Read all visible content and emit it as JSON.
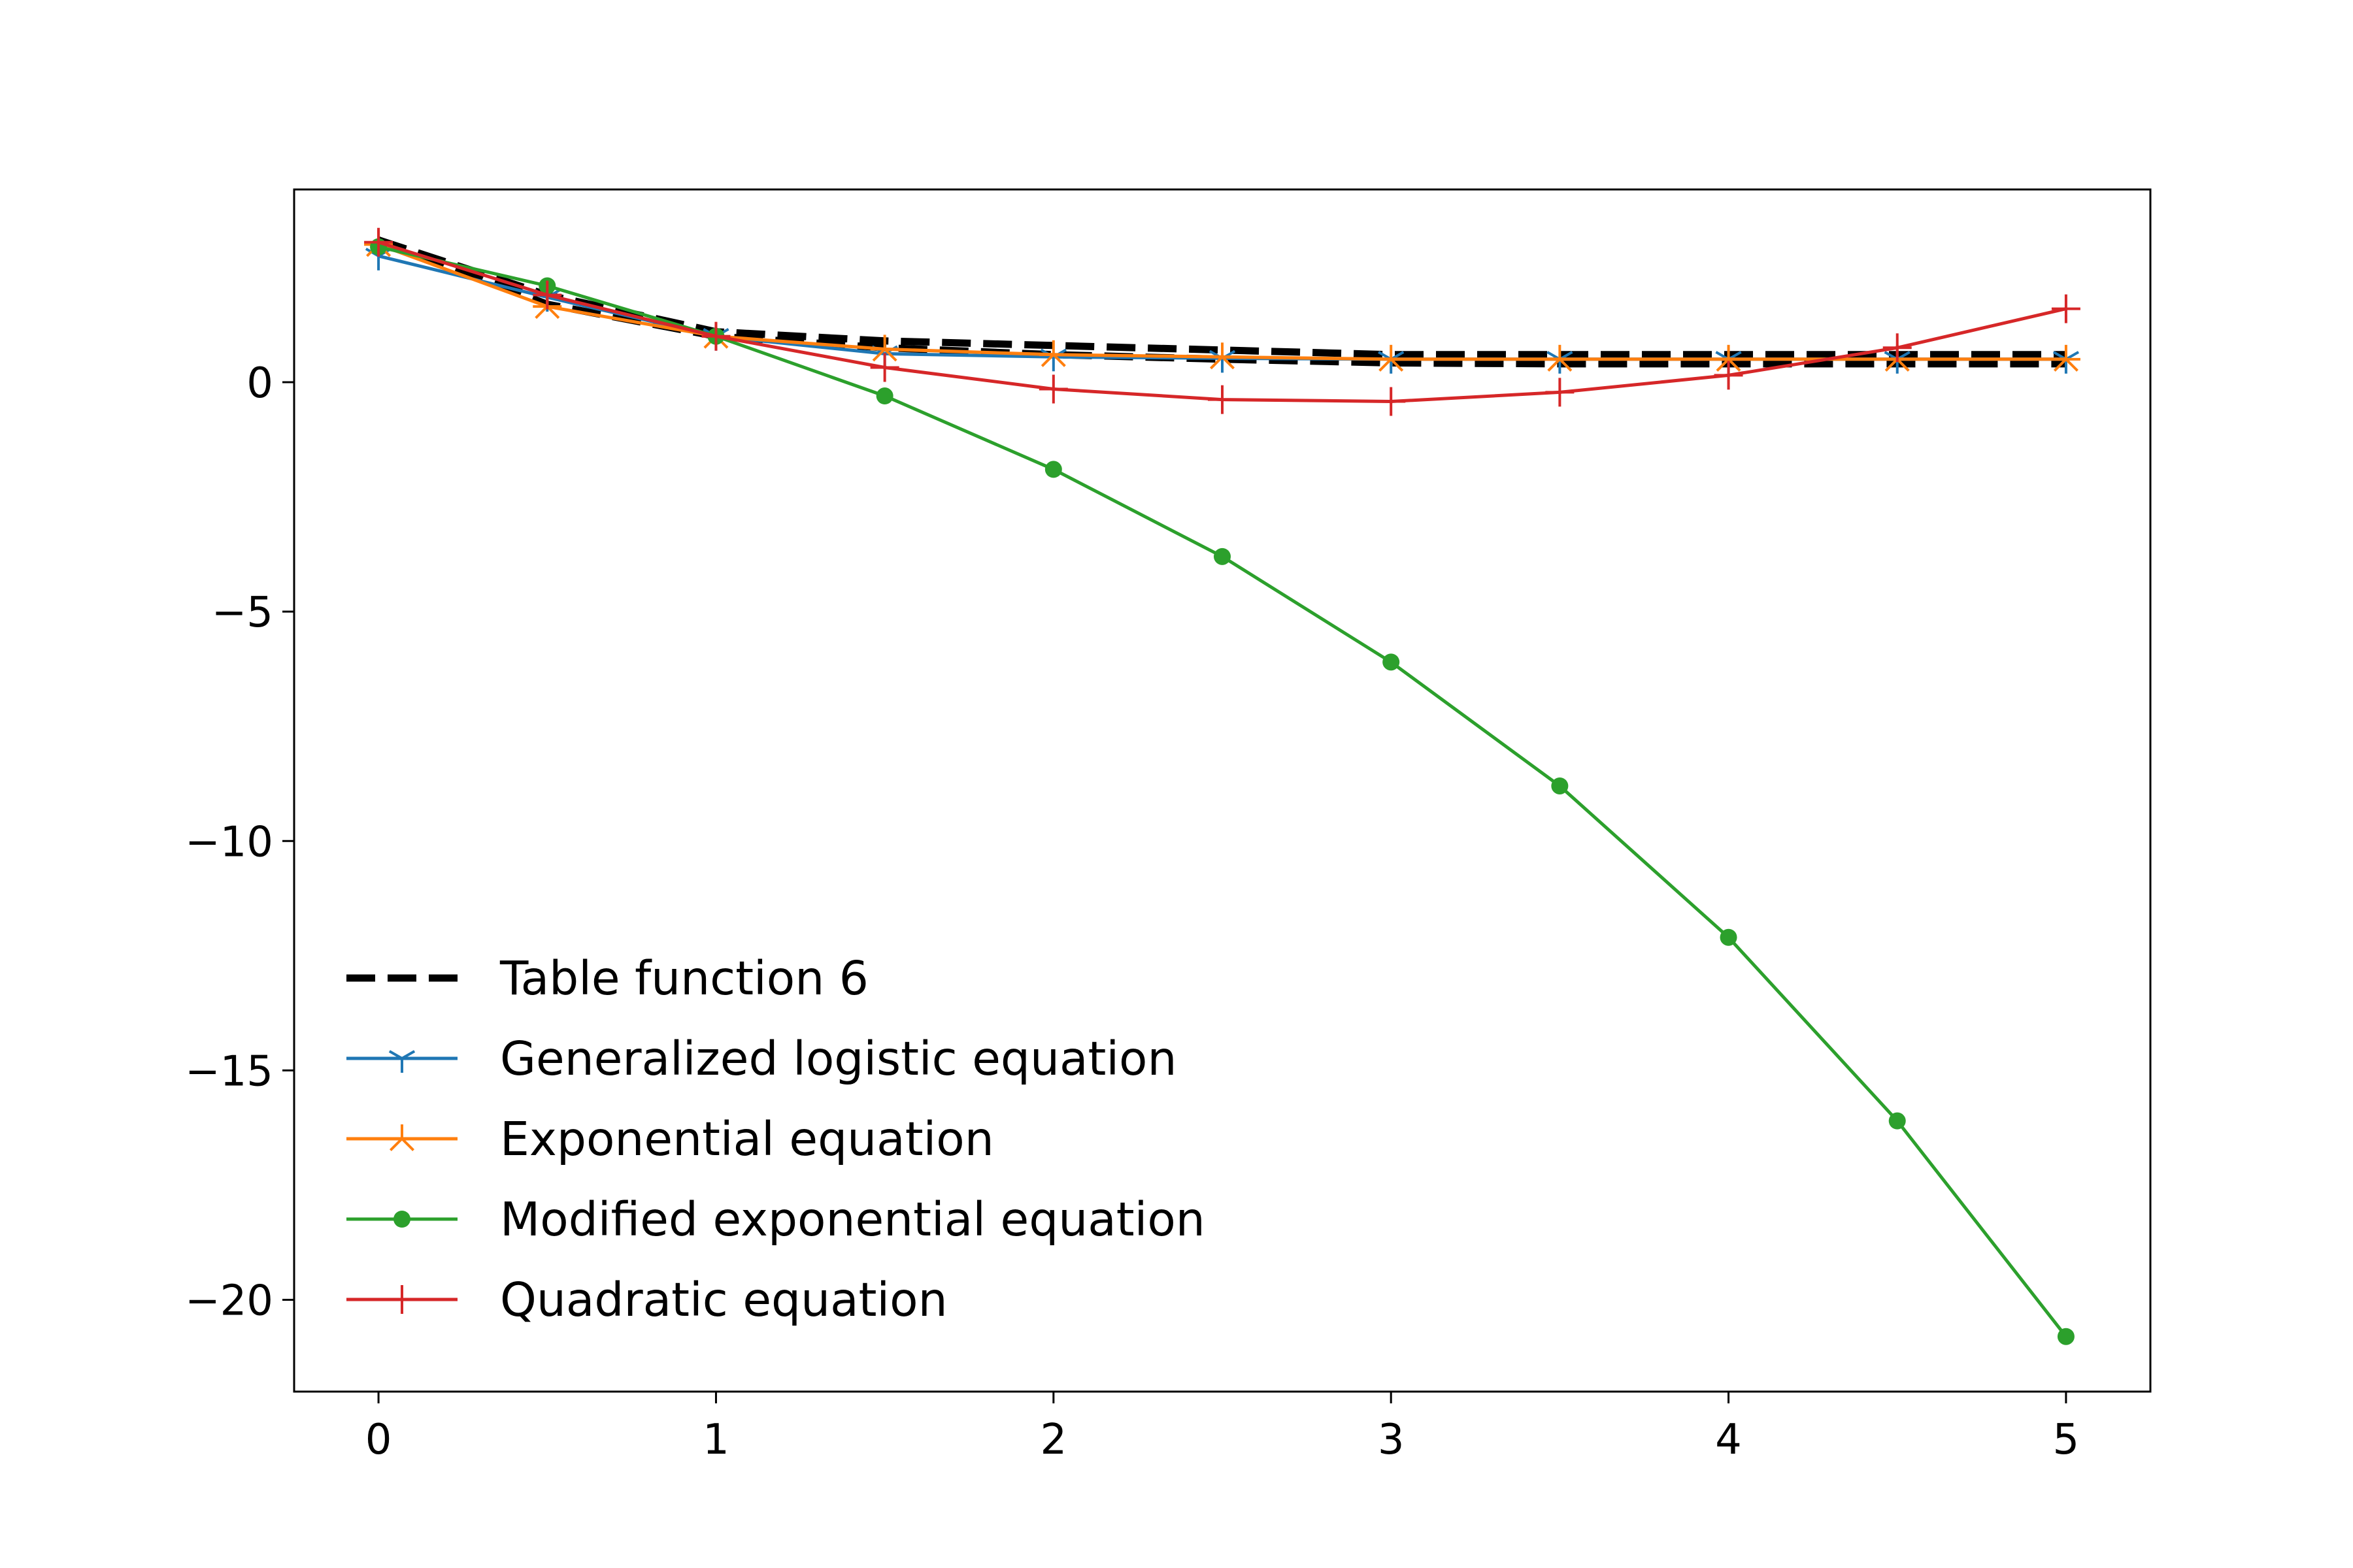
{
  "chart_data": {
    "type": "line",
    "title": "",
    "xlabel": "",
    "ylabel": "",
    "xlim": [
      -0.25,
      5.25
    ],
    "ylim": [
      -22,
      4.2
    ],
    "xticks": [
      0,
      1,
      2,
      3,
      4,
      5
    ],
    "xtick_labels": [
      "0",
      "1",
      "2",
      "3",
      "4",
      "5"
    ],
    "yticks": [
      0,
      -5,
      -10,
      -15,
      -20
    ],
    "ytick_labels": [
      "0",
      "−5",
      "−10",
      "−15",
      "−20"
    ],
    "grid": false,
    "legend_position": "lower-left",
    "x": [
      0,
      0.5,
      1,
      1.5,
      2,
      2.5,
      3,
      3.5,
      4,
      4.5,
      5
    ],
    "series": [
      {
        "name": "Table function 6",
        "color": "#000000",
        "marker": "none",
        "linestyle": "dashed",
        "values": [
          3.1,
          1.7,
          1.0,
          0.75,
          0.6,
          0.5,
          0.42,
          0.4,
          0.4,
          0.4,
          0.4
        ],
        "upper_values": [
          3.1,
          1.9,
          1.1,
          0.9,
          0.8,
          0.7,
          0.6,
          0.6,
          0.6,
          0.6,
          0.6
        ]
      },
      {
        "name": "Generalized logistic equation",
        "color": "#1f77b4",
        "marker": "tri_down",
        "linestyle": "solid",
        "values": [
          2.75,
          1.85,
          1.0,
          0.62,
          0.55,
          0.52,
          0.5,
          0.5,
          0.5,
          0.5,
          0.5
        ]
      },
      {
        "name": "Exponential equation",
        "color": "#ff7f0e",
        "marker": "star",
        "linestyle": "solid",
        "values": [
          3.0,
          1.65,
          1.0,
          0.72,
          0.6,
          0.55,
          0.5,
          0.5,
          0.5,
          0.5,
          0.5
        ]
      },
      {
        "name": "Modified exponential equation",
        "color": "#2ca02c",
        "marker": "point",
        "linestyle": "solid",
        "values": [
          2.95,
          2.1,
          1.0,
          -0.3,
          -1.9,
          -3.8,
          -6.1,
          -8.8,
          -12.1,
          -16.1,
          -20.8
        ]
      },
      {
        "name": "Quadratic equation",
        "color": "#d62728",
        "marker": "plus",
        "linestyle": "solid",
        "values": [
          3.05,
          1.9,
          1.0,
          0.32,
          -0.15,
          -0.38,
          -0.42,
          -0.22,
          0.15,
          0.75,
          1.6
        ]
      }
    ]
  }
}
